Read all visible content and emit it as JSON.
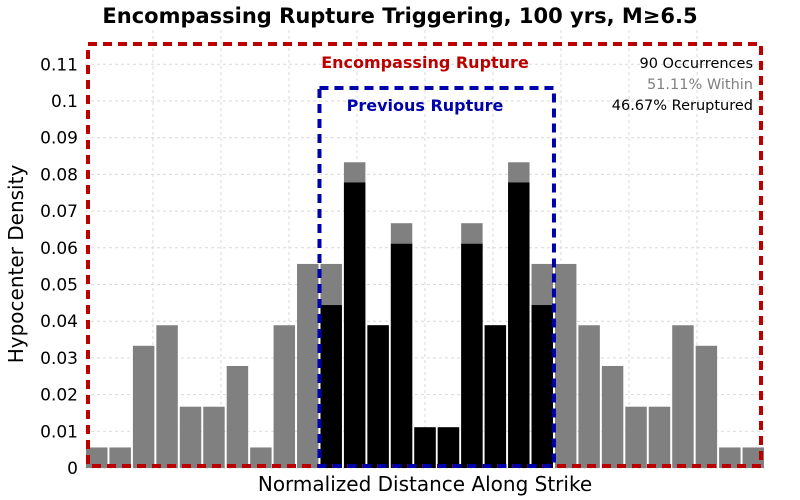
{
  "chart_data": {
    "type": "bar",
    "title": "Encompassing Rupture Triggering, 100 yrs, M≥6.5",
    "xlabel": "Normalized Distance Along Strike",
    "ylabel": "Hypocenter Density",
    "ylim": [
      0,
      0.116
    ],
    "yticks": [
      "0",
      "0.01",
      "0.02",
      "0.03",
      "0.04",
      "0.05",
      "0.06",
      "0.07",
      "0.08",
      "0.09",
      "0.1",
      "0.11"
    ],
    "grid": true,
    "series": [
      {
        "values": [
          0.0056,
          0.0056,
          0.0333,
          0.0389,
          0.0167,
          0.0167,
          0.0278,
          0.0056,
          0.0389,
          0.0556,
          0.0556,
          0.0833,
          0.0389,
          0.0667,
          0.0111,
          0.0111,
          0.0667,
          0.0389,
          0.0833,
          0.0556,
          0.0556,
          0.0389,
          0.0278,
          0.0167,
          0.0167,
          0.0389,
          0.0333,
          0.0056,
          0.0056
        ],
        "color": "#808080"
      },
      {
        "values": [
          0,
          0,
          0,
          0,
          0,
          0,
          0,
          0,
          0,
          0,
          0.0444,
          0.0778,
          0.0389,
          0.0611,
          0.0111,
          0.0111,
          0.0611,
          0.0389,
          0.0778,
          0.0444,
          0,
          0,
          0,
          0,
          0,
          0,
          0,
          0,
          0
        ],
        "color": "#000000"
      }
    ],
    "annotations": {
      "encompassing_label": "Encompassing Rupture",
      "previous_label": "Previous Rupture",
      "stats": [
        "90 Occurrences",
        "51.11% Within",
        "46.67% Reruptured"
      ]
    },
    "colors": {
      "encompassing_box": "#bb0000",
      "previous_box": "#0000aa",
      "stat_within": "#808080",
      "stat_default": "#000000"
    }
  }
}
